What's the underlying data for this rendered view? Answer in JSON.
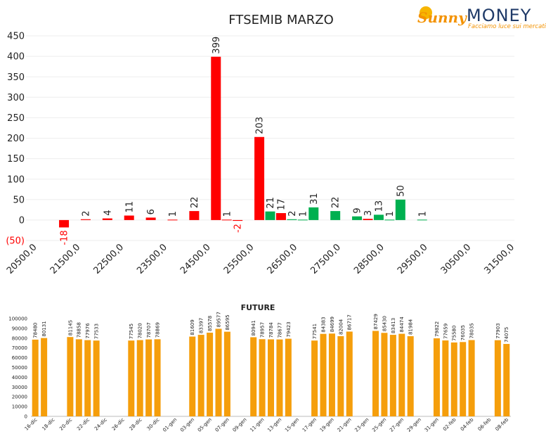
{
  "logo": {
    "brand": "Sunny",
    "name": "MONEY",
    "tagline": "Facciamo luce sui mercati"
  },
  "chart_data": [
    {
      "type": "bar",
      "title": "FTSEMIB MARZO",
      "categories": [
        "20500,0",
        null,
        null,
        null,
        "21500,0",
        null,
        null,
        null,
        "22500,0",
        null,
        null,
        null,
        "23500,0",
        null,
        null,
        null,
        "24500,0",
        null,
        null,
        null,
        "25500,0",
        null,
        null,
        null,
        "26500,0",
        null,
        null,
        null,
        "27500,0",
        null,
        null,
        null,
        "28500,0",
        null,
        null,
        null,
        "29500,0",
        null,
        null,
        null,
        "30500,0",
        null,
        null,
        null,
        "31500,0"
      ],
      "values": [
        null,
        null,
        null,
        -18,
        null,
        2,
        null,
        4,
        null,
        11,
        null,
        6,
        null,
        1,
        null,
        22,
        null,
        399,
        1,
        -2,
        null,
        203,
        21,
        17,
        2,
        1,
        31,
        null,
        22,
        null,
        9,
        3,
        13,
        1,
        50,
        null,
        1,
        null,
        null,
        null,
        null,
        null,
        null,
        null,
        null
      ],
      "colors": [
        null,
        null,
        null,
        "#ff0000",
        null,
        "#ff0000",
        null,
        "#ff0000",
        null,
        "#ff0000",
        null,
        "#ff0000",
        null,
        "#ff0000",
        null,
        "#ff0000",
        null,
        "#ff0000",
        "#ff0000",
        "#ff0000",
        null,
        "#ff0000",
        "#00b050",
        "#ff0000",
        "#00b050",
        "#00b050",
        "#00b050",
        null,
        "#00b050",
        null,
        "#00b050",
        "#ff0000",
        "#00b050",
        "#00b050",
        "#00b050",
        null,
        "#00b050",
        null,
        null,
        null,
        null,
        null,
        null,
        null,
        null
      ],
      "ylim": [
        -50,
        450
      ],
      "yticks": [
        {
          "value": -50,
          "label": "(50)"
        },
        0,
        50,
        100,
        150,
        200,
        250,
        300,
        350,
        400,
        450
      ],
      "grid": true
    },
    {
      "type": "bar",
      "title": "FUTURE",
      "categories": [
        "16-dic",
        null,
        "18-dic",
        null,
        "20-dic",
        null,
        "22-dic",
        null,
        "24-dic",
        null,
        "26-dic",
        null,
        "28-dic",
        null,
        "30-dic",
        null,
        "01-gen",
        null,
        "03-gen",
        null,
        "05-gen",
        null,
        "07-gen",
        null,
        "09-gen",
        null,
        "11-gen",
        null,
        "13-gen",
        null,
        "15-gen",
        null,
        "17-gen",
        null,
        "19-gen",
        null,
        "21-gen",
        null,
        "23-gen",
        null,
        "25-gen",
        null,
        "27-gen",
        null,
        "29-gen",
        null,
        "31-gen",
        null,
        "02-feb",
        null,
        "04-feb",
        null,
        "06-feb",
        null,
        "08-feb"
      ],
      "values": [
        78480,
        80131,
        null,
        null,
        81145,
        78858,
        77976,
        77533,
        null,
        null,
        null,
        77545,
        78020,
        78707,
        78869,
        null,
        null,
        null,
        81609,
        83397,
        85578,
        89577,
        86595,
        null,
        null,
        80941,
        78957,
        78784,
        78677,
        79423,
        null,
        null,
        77541,
        84383,
        84699,
        82004,
        86717,
        null,
        null,
        87429,
        85430,
        83413,
        84474,
        81984,
        null,
        null,
        79822,
        77659,
        75580,
        76035,
        78035,
        null,
        null,
        77903,
        74075
      ],
      "color": "#f59e0b",
      "ylim": [
        0,
        100000
      ],
      "yticks": [
        0,
        10000,
        20000,
        30000,
        40000,
        50000,
        60000,
        70000,
        80000,
        90000,
        100000
      ],
      "grid": false
    }
  ]
}
